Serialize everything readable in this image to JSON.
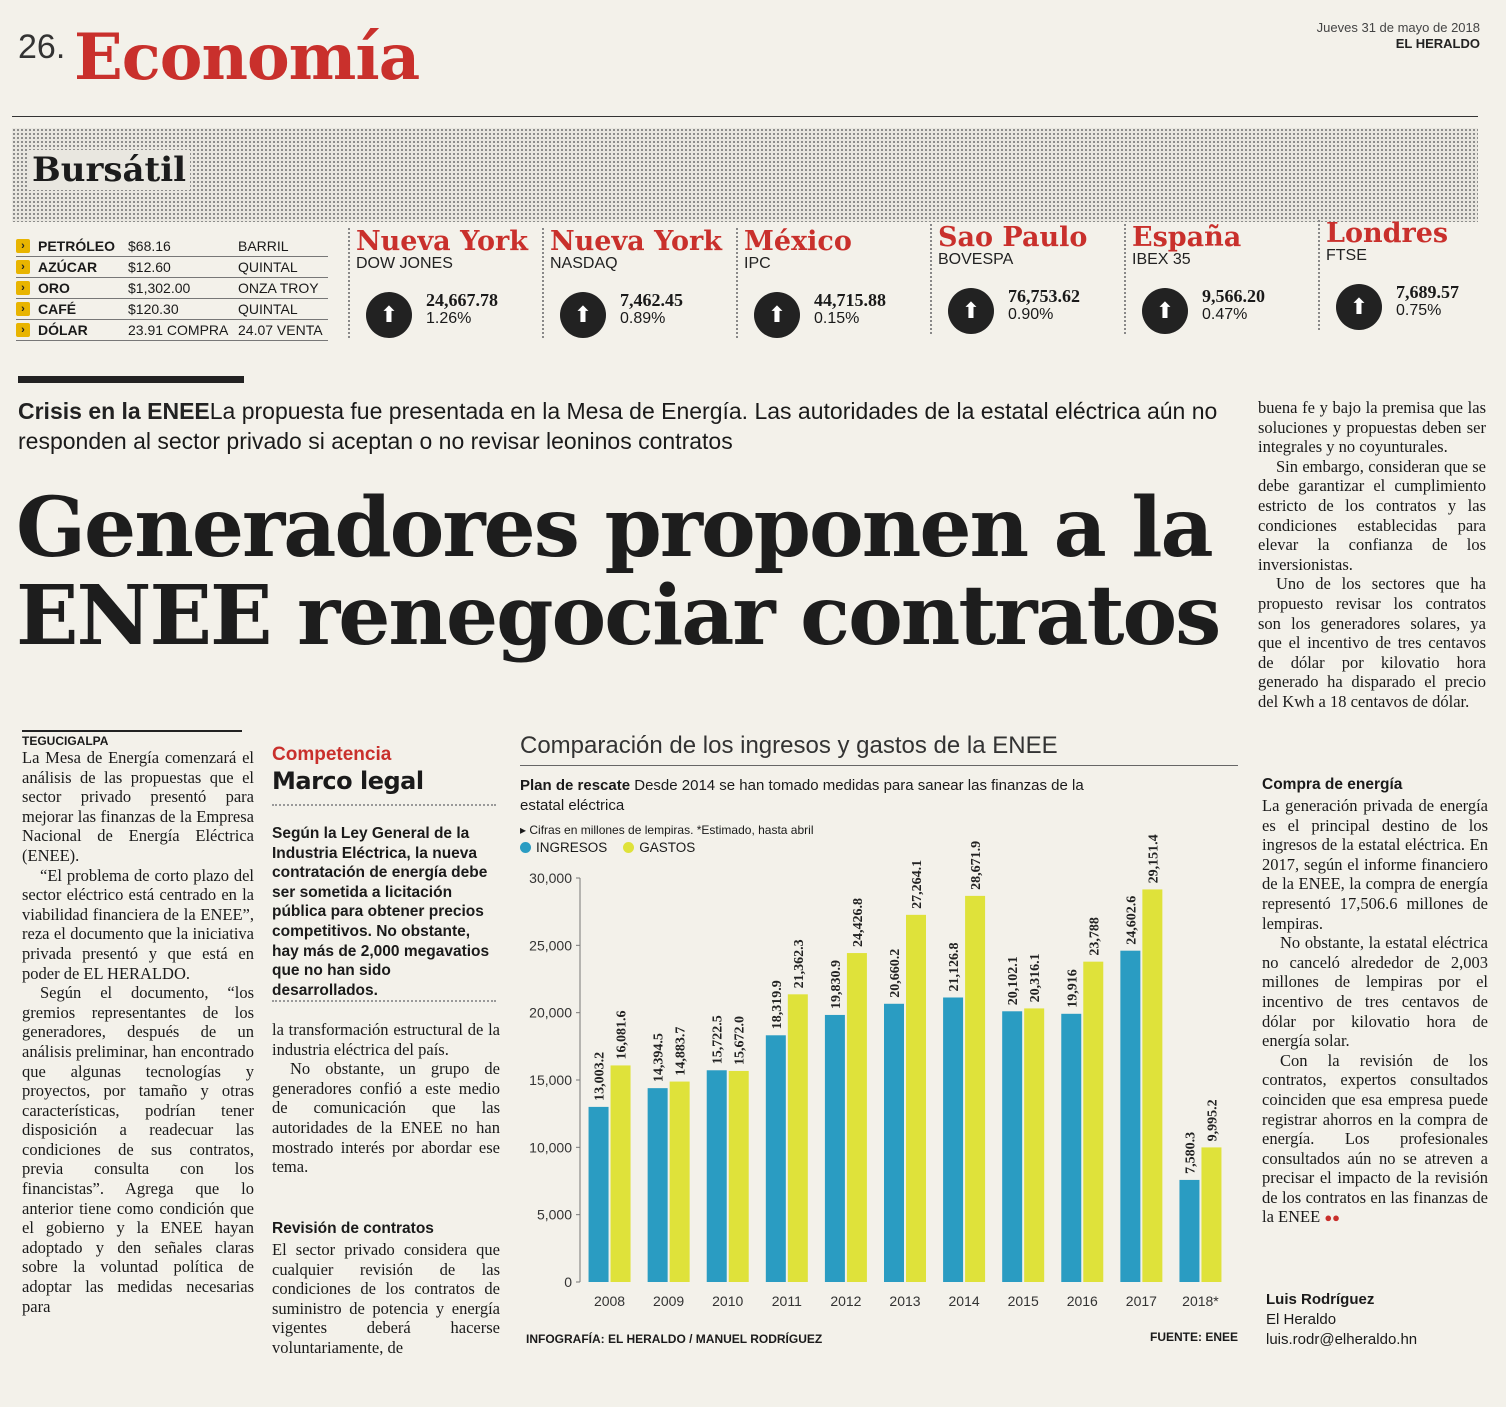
{
  "header": {
    "page_number": "26.",
    "section": "Economía",
    "date": "Jueves 31 de mayo de 2018",
    "paper": "EL HERALDO"
  },
  "bursatil": {
    "title": "Bursátil",
    "commodities": [
      {
        "name": "PETRÓLEO",
        "price": "$68.16",
        "unit": "BARRIL"
      },
      {
        "name": "AZÚCAR",
        "price": "$12.60",
        "unit": "QUINTAL"
      },
      {
        "name": "ORO",
        "price": "$1,302.00",
        "unit": "ONZA TROY"
      },
      {
        "name": "CAFÉ",
        "price": "$120.30",
        "unit": "QUINTAL"
      },
      {
        "name": "DÓLAR",
        "price": "23.91 COMPRA",
        "unit": "24.07 VENTA"
      }
    ],
    "markets": [
      {
        "city": "Nueva York",
        "index": "DOW JONES",
        "value": "24,667.78",
        "change": "1.26%"
      },
      {
        "city": "Nueva York",
        "index": "NASDAQ",
        "value": "7,462.45",
        "change": "0.89%"
      },
      {
        "city": "México",
        "index": "IPC",
        "value": "44,715.88",
        "change": "0.15%"
      },
      {
        "city": "Sao Paulo",
        "index": "BOVESPA",
        "value": "76,753.62",
        "change": "0.90%"
      },
      {
        "city": "España",
        "index": "IBEX 35",
        "value": "9,566.20",
        "change": "0.47%"
      },
      {
        "city": "Londres",
        "index": "FTSE",
        "value": "7,689.57",
        "change": "0.75%"
      }
    ]
  },
  "article": {
    "kicker": "Crisis en la ENEE",
    "subtitle": "La propuesta fue presentada en la Mesa de Energía. Las autoridades de la estatal eléctrica aún no responden al sector privado si aceptan o no revisar leoninos contratos",
    "headline": "Generadores proponen a la ENEE renegociar contratos",
    "dateline": "TEGUCIGALPA",
    "col1": [
      "La Mesa de Energía comenzará el análisis de las propuestas que el sector privado presentó para mejorar las finanzas de la Empresa Nacional de Energía Eléctrica (ENEE).",
      "“El problema de corto plazo del sector eléctrico está centrado en la viabilidad financiera de la ENEE”, reza el documento que la iniciativa privada presentó y que está en poder de EL HERALDO.",
      "Según el documento, “los gremios representantes de los generadores, después de un análisis preliminar, han encontrado que algunas tecnologías y proyectos, por tamaño y otras características, podrían tener disposición a readecuar las condiciones de sus contratos, previa consulta con los financistas”. Agrega que lo anterior tiene como condición que el gobierno y la ENEE hayan adoptado y den señales claras sobre la voluntad política de adoptar las medidas necesarias para"
    ],
    "box_label": "Competencia",
    "box_title": "Marco legal",
    "box_text": "Según la Ley General de la Industria Eléctrica, la nueva contratación de energía debe ser sometida a licitación pública para obtener precios competitivos. No obstante, hay más de 2,000 megavatios que no han sido desarrollados.",
    "col2": [
      "la transformación estructural de la industria eléctrica del país.",
      "No obstante, un grupo de generadores confió a este medio de comunicación que las autoridades de la ENEE no han mostrado interés por abordar ese tema."
    ],
    "revision_head": "Revisión de contratos",
    "col2b": "El sector privado considera que cualquier revisión de las condiciones de los contratos de suministro de potencia y energía vigentes deberá hacerse voluntariamente, de",
    "col4": [
      "buena fe y bajo la premisa que las soluciones y propuestas deben ser integrales y no coyunturales.",
      "Sin embargo, consideran que se debe garantizar el cumplimiento estricto de los contratos y las condiciones establecidas para elevar la confianza de los inversionistas.",
      "Uno de los sectores que ha propuesto revisar los contratos son los generadores solares, ya que el incentivo de tres centavos de dólar por kilovatio hora generado ha disparado el precio del Kwh a 18 centavos de dólar."
    ],
    "compra_head": "Compra de energía",
    "col4b": [
      "La generación privada de energía es el principal destino de los ingresos de la estatal eléctrica. En 2017, según el informe financiero de la ENEE, la compra de energía representó 17,506.6 millones de lempiras.",
      "No obstante, la estatal eléctrica no canceló alrededor de 2,003 millones de lempiras por el incentivo de tres centavos de dólar por kilovatio hora de energía solar.",
      "Con la revisión de los contratos, expertos consultados coinciden que esa empresa puede registrar ahorros en la compra de energía. Los profesionales consultados aún no se atreven a precisar el impacto de la revisión de los contratos en las finanzas de la ENEE"
    ],
    "end_mark": "●●",
    "byline_name": "Luis Rodríguez",
    "byline_outlet": "El Heraldo",
    "byline_email": "luis.rodr@elheraldo.hn"
  },
  "chart_data": {
    "type": "bar",
    "title": "Comparación de los ingresos y gastos de la ENEE",
    "subtitle_bold": "Plan de rescate",
    "subtitle": "Desde 2014 se han tomado medidas para sanear las finanzas de la estatal eléctrica",
    "note": "Cifras en millones de lempiras. *Estimado, hasta abril",
    "categories": [
      "2008",
      "2009",
      "2010",
      "2011",
      "2012",
      "2013",
      "2014",
      "2015",
      "2016",
      "2017",
      "2018*"
    ],
    "series": [
      {
        "name": "INGRESOS",
        "color": "#2a9cc2",
        "values": [
          13003.2,
          14394.5,
          15722.5,
          18319.9,
          19830.9,
          20660.2,
          21126.8,
          20102.1,
          19916,
          24602.6,
          7580.3
        ],
        "labels": [
          "13,003.2",
          "14,394.5",
          "15,722.5",
          "18,319.9",
          "19,830.9",
          "20,660.2",
          "21,126.8",
          "20,102.1",
          "19,916",
          "24,602.6",
          "7,580.3"
        ]
      },
      {
        "name": "GASTOS",
        "color": "#dfe23a",
        "values": [
          16081.6,
          14883.7,
          15672.0,
          21362.3,
          24426.8,
          27264.1,
          28671.9,
          20316.1,
          23788,
          29151.4,
          9995.2
        ],
        "labels": [
          "16,081.6",
          "14,883.7",
          "15,672.0",
          "21,362.3",
          "24,426.8",
          "27,264.1",
          "28,671.9",
          "20,316.1",
          "23,788",
          "29,151.4",
          "9,995.2"
        ]
      }
    ],
    "yticks": [
      "30,000",
      "25,000",
      "20,000",
      "15,000",
      "10,000",
      "5,000",
      "0"
    ],
    "ylim": [
      0,
      30000
    ],
    "credit": "INFOGRAFÍA: EL HERALDO / MANUEL RODRÍGUEZ",
    "source": "FUENTE: ENEE"
  }
}
